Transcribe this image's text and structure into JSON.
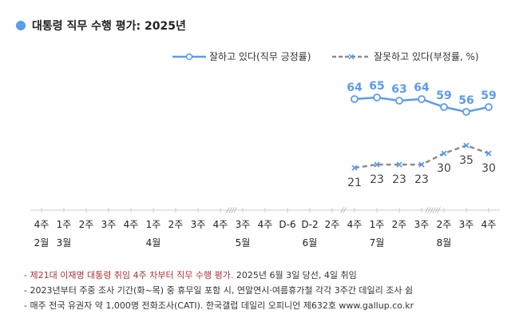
{
  "title": "대통령 직무 수행 평가: 2025년",
  "chart_data": {
    "type": "line",
    "title": "대통령 직무 수행 평가: 2025년",
    "legend_position": "top-right",
    "x_ticks": [
      "4주",
      "1주",
      "2주",
      "3주",
      "4주",
      "1주",
      "2주",
      "3주",
      "4주",
      "3주",
      "4주",
      "D-6",
      "D-2",
      "2주",
      "4주",
      "1주",
      "2주",
      "3주",
      "2주",
      "3주",
      "4주"
    ],
    "month_labels": [
      {
        "label": "2월",
        "tick": 0
      },
      {
        "label": "3월",
        "tick": 1
      },
      {
        "label": "4월",
        "tick": 5
      },
      {
        "label": "5월",
        "tick": 9
      },
      {
        "label": "6월",
        "tick": 12
      },
      {
        "label": "7월",
        "tick": 15
      },
      {
        "label": "8월",
        "tick": 18
      }
    ],
    "axis_breaks": [
      {
        "after_tick": 8,
        "mark": "////"
      },
      {
        "after_tick": 13,
        "mark": "//"
      },
      {
        "after_tick": 17,
        "mark": "//////"
      }
    ],
    "series": [
      {
        "name": "잘하고 있다(직무 긍정률)",
        "color": "#5b9bf0",
        "style": "solid",
        "marker": "circle",
        "ticks": [
          14,
          15,
          16,
          17,
          18,
          19,
          20
        ],
        "values": [
          64,
          65,
          63,
          64,
          59,
          56,
          59
        ]
      },
      {
        "name": "잘못하고 있다(부정률, %)",
        "color": "#8c8c8c",
        "marker_color": "#5b9bf0",
        "style": "dashed",
        "marker": "x",
        "ticks": [
          14,
          15,
          16,
          17,
          18,
          19,
          20
        ],
        "values": [
          21,
          23,
          23,
          23,
          30,
          35,
          30
        ]
      }
    ]
  },
  "notes": {
    "n1_red": "- 제21대 이재명 대통령 취임 4주 차부터 직무 수행 평가.",
    "n1_rest": " 2025년 6월 3일 당선, 4일 취임",
    "n2": "- 2023년부터 주중 조사 기간(화~목) 중 휴무일 포함 시, 연말연시·여름휴가철 각각 3주간 데일리 조사 쉼",
    "n3": "- 매주 전국 유권자 약 1,000명 전화조사(CATI). 한국갤럽 데일리 오피니언 제632호 www.gallup.co.kr"
  }
}
